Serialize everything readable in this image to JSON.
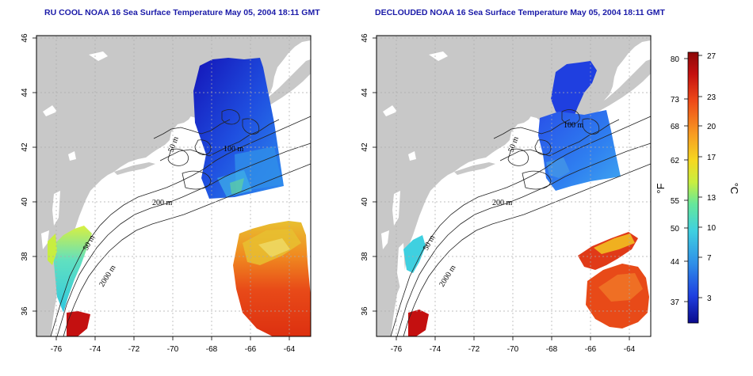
{
  "maps": [
    {
      "id": "left",
      "title": "RU COOL NOAA 16 Sea Surface Temperature May 05, 2004 18:11 GMT",
      "x_ticks": [
        "-76",
        "-74",
        "-72",
        "-70",
        "-68",
        "-66",
        "-64"
      ],
      "y_ticks": [
        "46",
        "44",
        "42",
        "40",
        "38",
        "36"
      ],
      "contour_labels": [
        "50 m",
        "200 m",
        "2000 m",
        "100 m",
        "50 m"
      ]
    },
    {
      "id": "right",
      "title": "DECLOUDED NOAA 16 Sea Surface Temperature May 05, 2004 18:11 GMT",
      "x_ticks": [
        "-76",
        "-74",
        "-72",
        "-70",
        "-68",
        "-66",
        "-64"
      ],
      "y_ticks": [
        "46",
        "44",
        "42",
        "40",
        "38",
        "36"
      ],
      "contour_labels": [
        "50 m",
        "200 m",
        "2000 m",
        "100 m",
        "50 m"
      ]
    }
  ],
  "colorbar": {
    "left_label": "°F",
    "right_label": "°C",
    "fahrenheit_ticks": [
      "80",
      "73",
      "68",
      "62",
      "55",
      "50",
      "44",
      "37"
    ],
    "celsius_ticks": [
      "27",
      "23",
      "20",
      "17",
      "13",
      "10",
      "7",
      "3"
    ],
    "gradient_colors": [
      "#0a0a8c",
      "#1f3fe0",
      "#2f8fe8",
      "#3fd0e0",
      "#66e89a",
      "#c8ee40",
      "#f6d820",
      "#f79a22",
      "#ee4a18",
      "#c41010",
      "#8c0808"
    ]
  },
  "colors": {
    "land": "#c8c8c8",
    "ocean": "#ffffff",
    "title": "#1a1aa8"
  }
}
